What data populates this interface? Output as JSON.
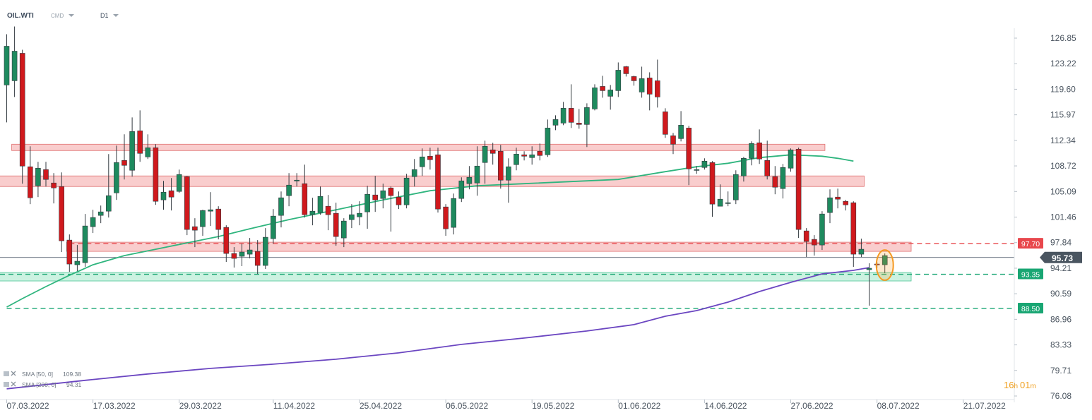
{
  "header": {
    "symbol": "OIL.WTI",
    "market": "CMD",
    "timeframe": "D1"
  },
  "countdown": {
    "hours": "16",
    "h_unit": "h",
    "minutes": "01",
    "m_unit": "m"
  },
  "colors": {
    "bull": "#1e8a5e",
    "bear": "#d0191d",
    "sma50": "#2fb57e",
    "sma200": "#6b46c1",
    "resistance_zone": "#f6b8b8",
    "support_zone": "#b6ecd4",
    "red_line": "#e8474c",
    "green_line": "#19a673",
    "current_price_bg": "#4a5560",
    "highlight": "#f59a23"
  },
  "chart_data": {
    "type": "candlestick",
    "symbol": "OIL.WTI",
    "timeframe": "D1",
    "y_axis": {
      "ticks": [
        126.85,
        123.22,
        119.6,
        115.97,
        112.34,
        108.72,
        105.09,
        101.46,
        97.84,
        94.21,
        90.59,
        86.96,
        83.33,
        79.71,
        76.08
      ],
      "range": [
        76.08,
        126.85
      ]
    },
    "x_axis": {
      "ticks": [
        "07.03.2022",
        "17.03.2022",
        "29.03.2022",
        "11.04.2022",
        "25.04.2022",
        "06.05.2022",
        "19.05.2022",
        "01.06.2022",
        "14.06.2022",
        "27.06.2022",
        "08.07.2022",
        "21.07.2022"
      ]
    },
    "candles": [
      [
        120.2,
        125.7,
        114.9,
        127.4
      ],
      [
        120.8,
        125.0,
        118.5,
        128.5
      ],
      [
        124.7,
        108.7,
        106.2,
        125.2
      ],
      [
        108.6,
        104.2,
        103.3,
        111.5
      ],
      [
        105.9,
        108.4,
        104.3,
        109.3
      ],
      [
        108.2,
        106.8,
        105.8,
        109.3
      ],
      [
        106.3,
        105.6,
        103.4,
        107.7
      ],
      [
        105.8,
        98.1,
        96.5,
        107.8
      ],
      [
        98.2,
        94.8,
        93.7,
        99.0
      ],
      [
        94.7,
        95.2,
        93.8,
        97.5
      ],
      [
        95.0,
        100.2,
        94.4,
        101.9
      ],
      [
        100.1,
        101.4,
        99.2,
        102.5
      ],
      [
        101.7,
        102.2,
        100.6,
        103.1
      ],
      [
        102.3,
        104.5,
        101.4,
        110.4
      ],
      [
        104.9,
        109.2,
        103.9,
        111.6
      ],
      [
        109.5,
        108.8,
        106.8,
        113.2
      ],
      [
        108.1,
        113.6,
        107.2,
        115.6
      ],
      [
        113.7,
        110.5,
        109.3,
        116.6
      ],
      [
        110.0,
        111.3,
        109.7,
        113.2
      ],
      [
        111.3,
        103.7,
        103.2,
        111.8
      ],
      [
        103.9,
        105.0,
        102.5,
        106.6
      ],
      [
        105.2,
        104.3,
        102.4,
        107.0
      ],
      [
        105.1,
        107.5,
        104.9,
        108.2
      ],
      [
        107.2,
        99.7,
        98.9,
        107.3
      ],
      [
        100.1,
        99.6,
        97.2,
        101.3
      ],
      [
        100.1,
        102.4,
        98.8,
        102.5
      ],
      [
        102.3,
        102.5,
        100.2,
        105.0
      ],
      [
        102.6,
        99.7,
        98.3,
        103.0
      ],
      [
        100.0,
        96.3,
        95.1,
        100.3
      ],
      [
        96.3,
        95.6,
        94.3,
        97.2
      ],
      [
        95.9,
        96.5,
        94.5,
        97.7
      ],
      [
        96.2,
        96.8,
        95.6,
        98.5
      ],
      [
        96.6,
        94.6,
        93.4,
        98.2
      ],
      [
        94.6,
        98.6,
        94.1,
        99.9
      ],
      [
        98.4,
        101.6,
        97.7,
        102.6
      ],
      [
        101.7,
        104.2,
        100.0,
        105.1
      ],
      [
        104.5,
        106.0,
        103.0,
        107.7
      ],
      [
        106.7,
        106.7,
        105.8,
        107.7
      ],
      [
        106.2,
        101.8,
        101.4,
        108.9
      ],
      [
        101.8,
        102.3,
        100.3,
        104.2
      ],
      [
        102.1,
        104.4,
        101.8,
        105.8
      ],
      [
        103.0,
        101.8,
        99.6,
        104.6
      ],
      [
        102.0,
        98.7,
        97.4,
        103.5
      ],
      [
        98.5,
        100.9,
        97.2,
        101.3
      ],
      [
        101.1,
        101.8,
        99.9,
        103.3
      ],
      [
        101.5,
        102.0,
        100.3,
        103.7
      ],
      [
        102.2,
        104.7,
        99.8,
        105.9
      ],
      [
        104.6,
        103.9,
        102.2,
        107.3
      ],
      [
        104.1,
        105.2,
        102.7,
        106.2
      ],
      [
        105.6,
        104.5,
        99.4,
        105.8
      ],
      [
        104.3,
        103.2,
        102.6,
        105.1
      ],
      [
        103.2,
        107.0,
        102.7,
        107.6
      ],
      [
        107.2,
        108.2,
        105.8,
        109.7
      ],
      [
        108.6,
        110.0,
        107.3,
        111.2
      ],
      [
        110.1,
        109.6,
        108.2,
        111.3
      ],
      [
        110.3,
        102.6,
        102.1,
        111.3
      ],
      [
        102.9,
        99.8,
        98.8,
        103.3
      ],
      [
        100.0,
        104.1,
        99.0,
        104.8
      ],
      [
        104.1,
        106.6,
        103.6,
        107.1
      ],
      [
        106.2,
        107.1,
        105.4,
        108.7
      ],
      [
        106.3,
        108.7,
        104.5,
        111.5
      ],
      [
        109.2,
        111.5,
        106.2,
        112.3
      ],
      [
        111.0,
        110.5,
        108.9,
        112.0
      ],
      [
        110.8,
        106.7,
        105.5,
        111.7
      ],
      [
        106.7,
        108.6,
        103.5,
        109.8
      ],
      [
        108.9,
        110.4,
        108.1,
        111.3
      ],
      [
        110.3,
        110.1,
        109.5,
        110.8
      ],
      [
        109.9,
        110.3,
        108.9,
        111.5
      ],
      [
        110.8,
        110.2,
        109.5,
        111.9
      ],
      [
        110.3,
        114.1,
        110.0,
        115.3
      ],
      [
        114.5,
        115.3,
        113.8,
        115.9
      ],
      [
        114.8,
        116.9,
        114.5,
        117.8
      ],
      [
        116.9,
        114.9,
        114.1,
        120.3
      ],
      [
        114.8,
        114.6,
        114.0,
        116.8
      ],
      [
        114.6,
        117.0,
        111.4,
        117.6
      ],
      [
        116.8,
        119.8,
        116.6,
        120.3
      ],
      [
        120.0,
        119.4,
        118.4,
        121.5
      ],
      [
        118.6,
        119.5,
        116.7,
        120.2
      ],
      [
        119.4,
        122.3,
        118.5,
        123.4
      ],
      [
        122.8,
        121.8,
        121.4,
        122.9
      ],
      [
        121.4,
        120.8,
        120.1,
        121.5
      ],
      [
        119.2,
        121.1,
        118.4,
        122.8
      ],
      [
        121.2,
        118.9,
        116.6,
        122.0
      ],
      [
        120.8,
        118.5,
        117.0,
        123.8
      ],
      [
        116.4,
        113.2,
        112.7,
        116.9
      ],
      [
        113.0,
        111.8,
        110.4,
        113.4
      ],
      [
        112.6,
        114.5,
        112.2,
        116.5
      ],
      [
        114.1,
        108.3,
        106.0,
        114.4
      ],
      [
        108.1,
        108.2,
        107.6,
        108.7
      ],
      [
        108.5,
        109.4,
        108.2,
        109.8
      ],
      [
        109.2,
        103.3,
        101.5,
        109.4
      ],
      [
        103.0,
        104.0,
        103.1,
        106.1
      ],
      [
        103.4,
        103.5,
        103.0,
        105.1
      ],
      [
        103.9,
        107.5,
        103.3,
        108.1
      ],
      [
        107.3,
        109.8,
        106.5,
        110.0
      ],
      [
        109.8,
        111.9,
        108.8,
        112.2
      ],
      [
        112.0,
        109.7,
        109.0,
        113.9
      ],
      [
        109.5,
        107.3,
        106.8,
        112.3
      ],
      [
        107.2,
        105.7,
        104.7,
        108.7
      ],
      [
        105.5,
        108.5,
        104.1,
        109.0
      ],
      [
        108.4,
        111.0,
        107.9,
        111.2
      ],
      [
        111.1,
        99.7,
        98.5,
        111.3
      ],
      [
        99.5,
        98.0,
        95.8,
        99.9
      ],
      [
        98.3,
        97.5,
        96.0,
        98.9
      ],
      [
        97.5,
        101.9,
        96.8,
        102.3
      ],
      [
        102.1,
        104.2,
        100.6,
        105.4
      ],
      [
        104.3,
        104.0,
        102.7,
        105.5
      ],
      [
        103.7,
        103.2,
        102.4,
        103.9
      ],
      [
        103.5,
        96.2,
        94.4,
        103.7
      ],
      [
        96.2,
        96.9,
        95.8,
        98.4
      ],
      [
        94.0,
        94.2,
        88.9,
        94.9
      ],
      [
        94.8,
        94.7,
        94.2,
        95.1
      ],
      [
        94.7,
        96.0,
        93.5,
        96.3
      ]
    ],
    "sma50": {
      "label": "SMA [50, 0]",
      "value": 109.38,
      "points": [
        [
          0,
          88.7
        ],
        [
          2,
          89.9
        ],
        [
          5,
          91.6
        ],
        [
          8,
          93.2
        ],
        [
          11,
          94.7
        ],
        [
          15,
          96.0
        ],
        [
          19,
          96.9
        ],
        [
          23,
          97.8
        ],
        [
          27,
          98.7
        ],
        [
          31,
          99.8
        ],
        [
          36,
          101.1
        ],
        [
          42,
          102.5
        ],
        [
          48,
          103.9
        ],
        [
          54,
          105.2
        ],
        [
          60,
          105.9
        ],
        [
          66,
          106.2
        ],
        [
          72,
          106.5
        ],
        [
          78,
          106.8
        ],
        [
          84,
          107.9
        ],
        [
          88,
          108.6
        ],
        [
          92,
          109.1
        ],
        [
          96,
          109.9
        ],
        [
          100,
          110.3
        ],
        [
          104,
          110.1
        ],
        [
          106,
          109.8
        ],
        [
          108,
          109.4
        ]
      ]
    },
    "sma200": {
      "label": "SMA [200, 0]",
      "value": 94.31,
      "points": [
        [
          0,
          77.1
        ],
        [
          10,
          78.3
        ],
        [
          18,
          79.2
        ],
        [
          26,
          80.0
        ],
        [
          34,
          80.6
        ],
        [
          42,
          81.3
        ],
        [
          50,
          82.2
        ],
        [
          58,
          83.4
        ],
        [
          66,
          84.3
        ],
        [
          74,
          85.3
        ],
        [
          80,
          86.2
        ],
        [
          84,
          87.4
        ],
        [
          88,
          88.2
        ],
        [
          92,
          89.4
        ],
        [
          96,
          90.9
        ],
        [
          100,
          92.2
        ],
        [
          104,
          93.4
        ],
        [
          108,
          93.9
        ],
        [
          110,
          94.3
        ]
      ]
    },
    "zones": [
      {
        "type": "resistance",
        "low": 110.9,
        "high": 111.8,
        "from": 1,
        "to": 104
      },
      {
        "type": "resistance",
        "low": 105.8,
        "high": 107.3,
        "from": -1,
        "to": 109
      },
      {
        "type": "resistance",
        "low": 96.6,
        "high": 97.9,
        "from": 8,
        "to": 115
      },
      {
        "type": "support",
        "low": 92.4,
        "high": 93.6,
        "from": -1,
        "to": 115
      }
    ],
    "levels": [
      {
        "value": 97.7,
        "label": "97.70",
        "style": "dashed",
        "color": "red",
        "from": 8
      },
      {
        "value": 93.35,
        "label": "93.35",
        "style": "dashed",
        "color": "green",
        "from": -1
      },
      {
        "value": 88.5,
        "label": "88.50",
        "style": "dashed",
        "color": "green",
        "from": 0
      }
    ],
    "current_price": {
      "value": 95.73,
      "label": "95.73"
    },
    "highlight_candle_index": 112,
    "legend": [
      {
        "label": "SMA [50, 0]",
        "value": "109.38"
      },
      {
        "label": "SMA [200, 0]",
        "value": "94.31"
      }
    ]
  }
}
